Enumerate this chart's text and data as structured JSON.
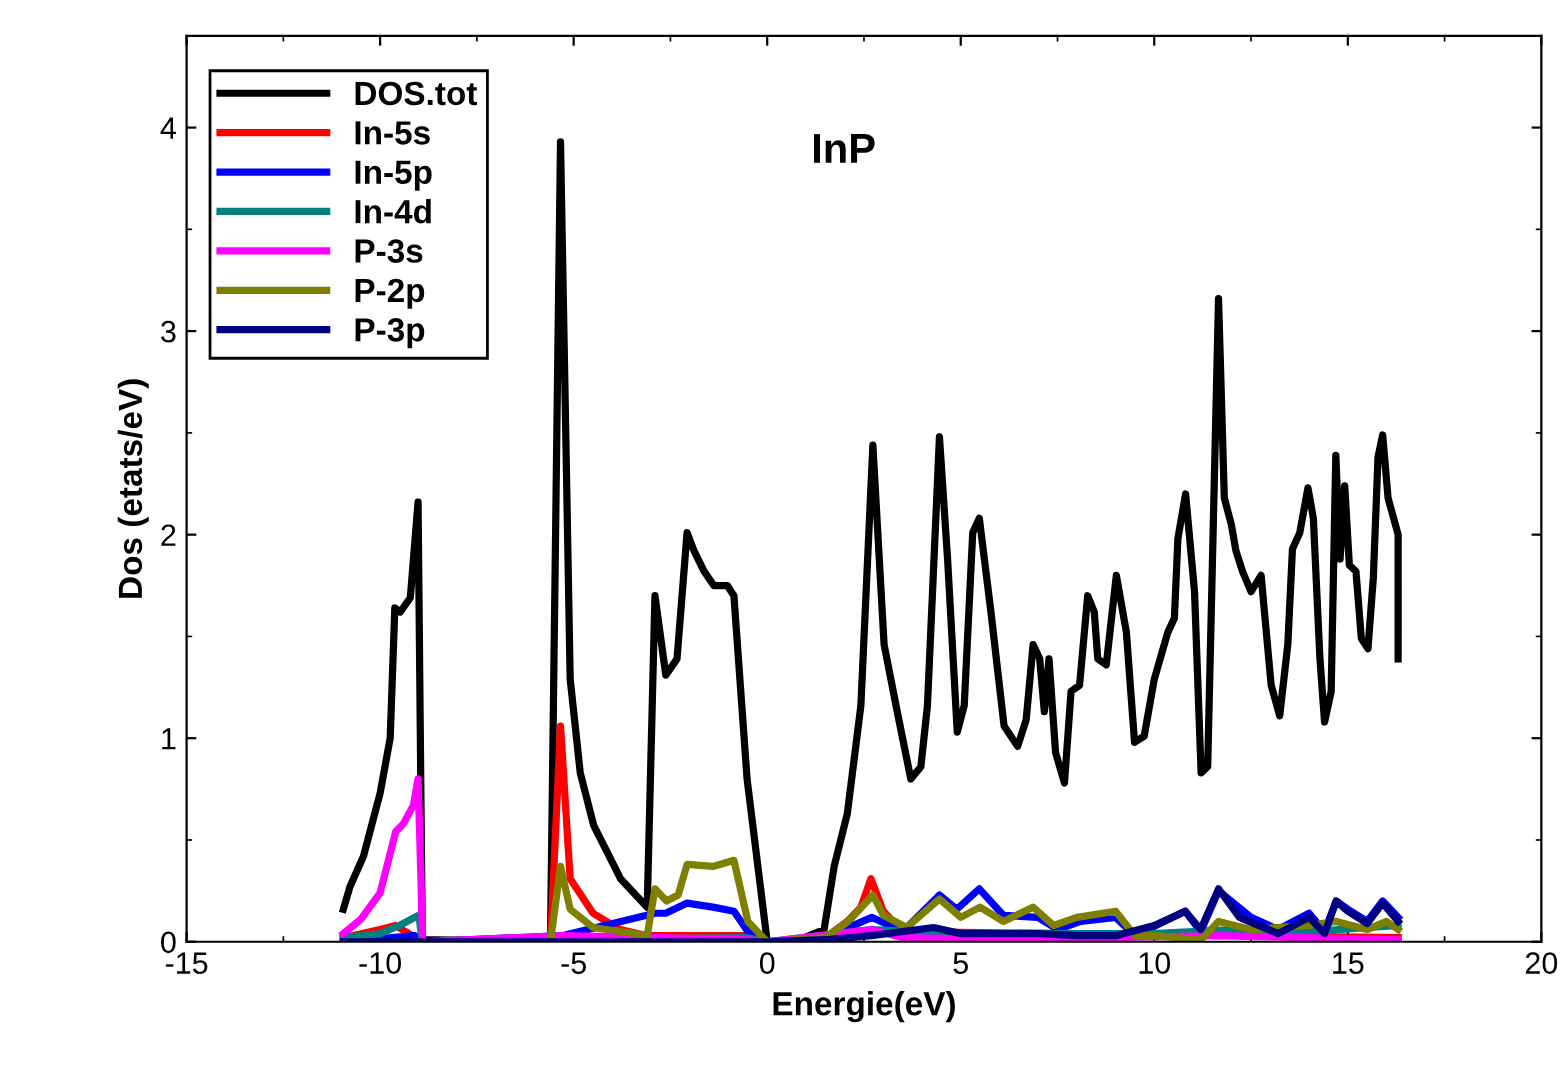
{
  "chart_data": {
    "type": "line",
    "title": "InP",
    "xlabel": "Energie(eV)",
    "ylabel": "Dos (etats/eV)",
    "xlim": [
      -15,
      20
    ],
    "xticks": [
      -15,
      -10,
      -5,
      0,
      5,
      10,
      15,
      20
    ],
    "ylim": [
      0,
      4.45
    ],
    "yticks": [
      0,
      1,
      2,
      3,
      4
    ],
    "grid": false,
    "legend": "top left",
    "marker": "none",
    "line_style": "solid",
    "series": [
      {
        "name": "DOS.tot",
        "color": "#000000",
        "x": [
          -10.95,
          -10.78,
          -10.43,
          -10.0,
          -9.74,
          -9.62,
          -9.48,
          -9.22,
          -9.02,
          -8.91,
          -5.6,
          -5.34,
          -5.09,
          -4.83,
          -4.48,
          -3.79,
          -3.1,
          -2.9,
          -2.62,
          -2.33,
          -2.07,
          -1.89,
          -1.63,
          -1.38,
          -1.03,
          -0.86,
          -0.52,
          0,
          0.69,
          1.47,
          1.73,
          2.07,
          2.42,
          2.73,
          3.02,
          3.36,
          3.71,
          3.97,
          4.14,
          4.45,
          4.66,
          4.91,
          5.09,
          5.31,
          5.48,
          5.78,
          6.12,
          6.47,
          6.69,
          6.87,
          7.04,
          7.16,
          7.28,
          7.45,
          7.68,
          7.85,
          8.07,
          8.28,
          8.45,
          8.54,
          8.76,
          9.02,
          9.28,
          9.49,
          9.74,
          10.0,
          10.35,
          10.52,
          10.61,
          10.81,
          11.04,
          11.21,
          11.38,
          11.66,
          11.81,
          11.99,
          12.11,
          12.28,
          12.5,
          12.76,
          13.02,
          13.24,
          13.45,
          13.57,
          13.76,
          13.97,
          14.11,
          14.28,
          14.4,
          14.57,
          14.69,
          14.8,
          14.92,
          15.04,
          15.21,
          15.35,
          15.52,
          15.66,
          15.78,
          15.9,
          16.04,
          16.3,
          16.3
        ],
        "values": [
          0.16,
          0.27,
          0.42,
          0.73,
          1.0,
          1.64,
          1.62,
          1.69,
          2.16,
          0.01,
          0,
          3.93,
          1.29,
          0.83,
          0.57,
          0.31,
          0.17,
          1.7,
          1.31,
          1.39,
          2.01,
          1.92,
          1.82,
          1.75,
          1.75,
          1.7,
          0.8,
          0,
          0,
          0.06,
          0.37,
          0.63,
          1.16,
          2.44,
          1.46,
          1.13,
          0.8,
          0.86,
          1.16,
          2.48,
          1.88,
          1.03,
          1.16,
          2.01,
          2.08,
          1.62,
          1.06,
          0.96,
          1.09,
          1.46,
          1.39,
          1.13,
          1.39,
          0.93,
          0.78,
          1.23,
          1.26,
          1.7,
          1.62,
          1.39,
          1.36,
          1.8,
          1.52,
          0.98,
          1.01,
          1.29,
          1.52,
          1.59,
          1.98,
          2.2,
          1.72,
          0.83,
          0.86,
          3.16,
          2.18,
          2.05,
          1.92,
          1.82,
          1.72,
          1.8,
          1.26,
          1.11,
          1.46,
          1.93,
          2.01,
          2.23,
          2.08,
          1.39,
          1.08,
          1.23,
          2.39,
          1.88,
          2.24,
          1.85,
          1.82,
          1.49,
          1.44,
          1.79,
          2.38,
          2.49,
          2.18,
          2.0,
          1.39
        ]
      },
      {
        "name": "In-5s",
        "color": "#ff0000",
        "x": [
          -10.95,
          -10.0,
          -9.6,
          -8.91,
          -5.6,
          -5.34,
          -5.09,
          -4.5,
          -3.8,
          -3.1,
          -0.5,
          0,
          1.5,
          2.07,
          2.42,
          2.68,
          3.0,
          3.5,
          16.3
        ],
        "values": [
          0.02,
          0.06,
          0.08,
          0,
          0,
          1.06,
          0.31,
          0.14,
          0.06,
          0.03,
          0.03,
          0,
          0.02,
          0.1,
          0.17,
          0.31,
          0.15,
          0.05,
          0.02
        ]
      },
      {
        "name": "In-5p",
        "color": "#0000ff",
        "x": [
          -10.95,
          -9.1,
          -8.91,
          -5.3,
          -2.9,
          -2.62,
          -2.07,
          -1.4,
          -0.86,
          -0.5,
          0,
          1.5,
          2.7,
          3.5,
          4.45,
          4.9,
          5.48,
          6.1,
          7.0,
          7.5,
          8.1,
          9.0,
          9.5,
          10.8,
          11.2,
          11.66,
          12.5,
          13.2,
          14.0,
          14.4,
          14.7,
          15.0,
          15.5,
          15.9,
          16.3
        ],
        "values": [
          0,
          0.03,
          0,
          0.03,
          0.14,
          0.14,
          0.19,
          0.17,
          0.15,
          0.05,
          0,
          0.02,
          0.12,
          0.05,
          0.23,
          0.16,
          0.26,
          0.13,
          0.12,
          0.06,
          0.1,
          0.12,
          0.03,
          0.15,
          0.05,
          0.25,
          0.12,
          0.06,
          0.14,
          0.05,
          0.2,
          0.16,
          0.1,
          0.2,
          0.12
        ]
      },
      {
        "name": "In-4d",
        "color": "#008080",
        "x": [
          -10.95,
          -10.0,
          -9.5,
          -9.0,
          -8.91,
          -5.3,
          -0.5,
          0,
          2.7,
          5.0,
          10.0,
          12.0,
          14.0,
          16.3
        ],
        "values": [
          0.02,
          0.04,
          0.08,
          0.13,
          0,
          0.01,
          0.02,
          0,
          0.06,
          0.04,
          0.04,
          0.06,
          0.05,
          0.08
        ]
      },
      {
        "name": "P-3s",
        "color": "#ff00ff",
        "x": [
          -10.95,
          -10.5,
          -10.0,
          -9.6,
          -9.4,
          -9.14,
          -9.02,
          -8.9,
          -5.3,
          -0.5,
          0,
          2.7,
          3.5,
          6.0,
          11.6,
          16.3
        ],
        "values": [
          0.04,
          0.11,
          0.24,
          0.54,
          0.58,
          0.67,
          0.8,
          0,
          0.03,
          0.01,
          0,
          0.06,
          0.02,
          0.01,
          0.03,
          0.01
        ]
      },
      {
        "name": "P-2p",
        "color": "#808000",
        "x": [
          -5.6,
          -5.34,
          -5.09,
          -4.5,
          -3.1,
          -2.9,
          -2.6,
          -2.3,
          -2.07,
          -1.4,
          -0.86,
          -0.5,
          0,
          1.5,
          2.1,
          2.73,
          3.0,
          3.6,
          4.45,
          5.0,
          5.5,
          6.1,
          6.87,
          7.4,
          8.0,
          9.0,
          9.5,
          10.0,
          11.2,
          11.66,
          12.5,
          14.0,
          14.7,
          15.5,
          16.0,
          16.3
        ],
        "values": [
          0,
          0.37,
          0.16,
          0.07,
          0.03,
          0.26,
          0.2,
          0.23,
          0.38,
          0.37,
          0.4,
          0.1,
          0,
          0.02,
          0.1,
          0.23,
          0.13,
          0.07,
          0.21,
          0.12,
          0.17,
          0.1,
          0.17,
          0.08,
          0.12,
          0.15,
          0.03,
          0.03,
          0.01,
          0.1,
          0.06,
          0.08,
          0.1,
          0.06,
          0.1,
          0.06
        ]
      },
      {
        "name": "P-3p",
        "color": "#000080",
        "x": [
          -10.95,
          0,
          1.5,
          2.7,
          4.3,
          5.0,
          7.0,
          8.0,
          9.0,
          10.0,
          10.8,
          11.2,
          11.66,
          12.2,
          13.2,
          14.0,
          14.4,
          14.7,
          15.0,
          15.5,
          15.9,
          16.3
        ],
        "values": [
          0,
          0,
          0.01,
          0.03,
          0.07,
          0.04,
          0.04,
          0.03,
          0.03,
          0.08,
          0.15,
          0.06,
          0.26,
          0.12,
          0.04,
          0.12,
          0.04,
          0.2,
          0.15,
          0.09,
          0.19,
          0.1
        ]
      }
    ]
  }
}
